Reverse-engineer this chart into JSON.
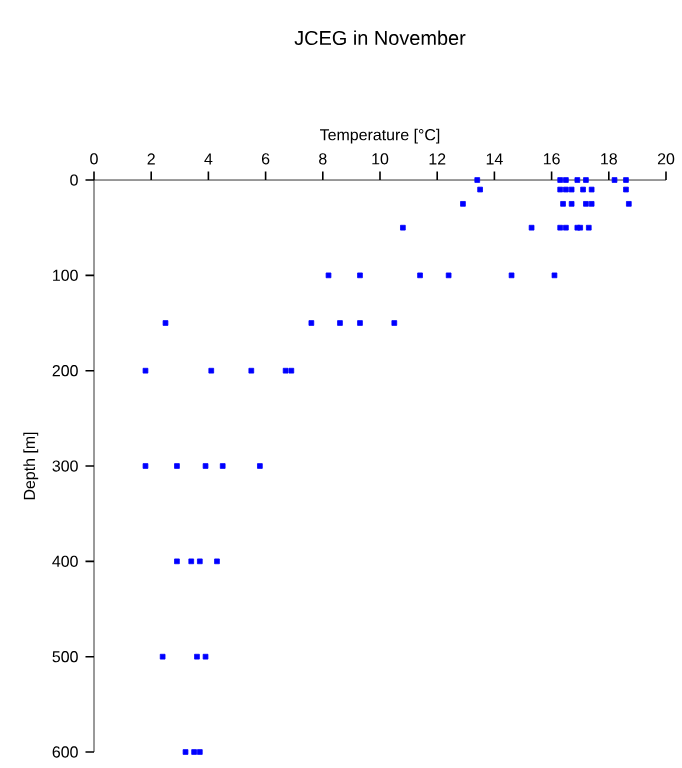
{
  "chart_data": {
    "type": "scatter",
    "title": "JCEG in November",
    "xlabel": "Temperature [°C]",
    "ylabel": "Depth [m]",
    "x": [
      13.4,
      16.3,
      16.5,
      16.9,
      17.2,
      18.2,
      18.6,
      13.5,
      16.3,
      16.5,
      16.7,
      17.1,
      17.4,
      18.6,
      12.9,
      16.4,
      16.7,
      17.2,
      17.4,
      18.7,
      10.8,
      15.3,
      16.3,
      16.5,
      16.9,
      17.0,
      17.3,
      8.2,
      9.3,
      11.4,
      12.4,
      14.6,
      16.1,
      2.5,
      7.6,
      8.6,
      9.3,
      10.5,
      1.8,
      4.1,
      5.5,
      6.7,
      6.9,
      1.8,
      2.9,
      3.9,
      4.5,
      5.8,
      2.9,
      3.4,
      3.7,
      4.3,
      2.4,
      3.6,
      3.9,
      3.2,
      3.5,
      3.7
    ],
    "values": [
      0,
      0,
      0,
      0,
      0,
      0,
      0,
      10,
      10,
      10,
      10,
      10,
      10,
      10,
      25,
      25,
      25,
      25,
      25,
      25,
      50,
      50,
      50,
      50,
      50,
      50,
      50,
      100,
      100,
      100,
      100,
      100,
      100,
      150,
      150,
      150,
      150,
      150,
      200,
      200,
      200,
      200,
      200,
      300,
      300,
      300,
      300,
      300,
      400,
      400,
      400,
      400,
      500,
      500,
      500,
      600,
      600,
      600
    ],
    "color": "#0000ff",
    "marker": "square",
    "xlim": [
      0,
      20
    ],
    "xticks": [
      0,
      2,
      4,
      6,
      8,
      10,
      12,
      14,
      16,
      18,
      20
    ],
    "ylim": [
      600,
      0
    ],
    "yticks": [
      0,
      100,
      200,
      300,
      400,
      500,
      600
    ]
  }
}
